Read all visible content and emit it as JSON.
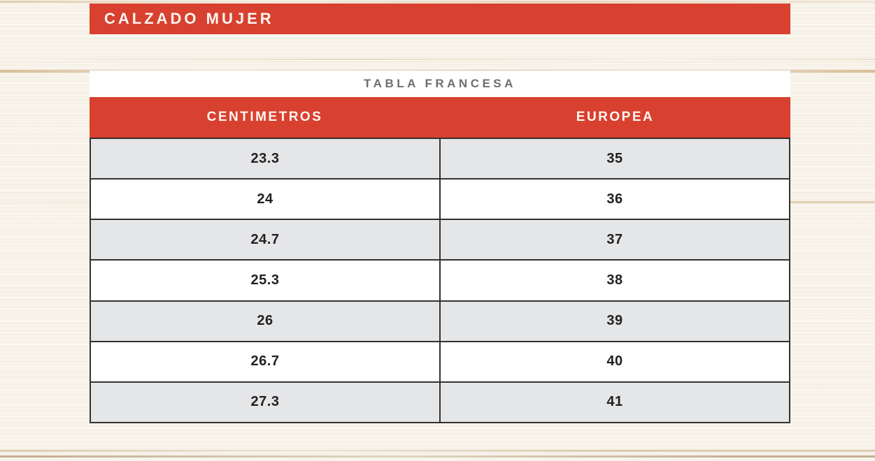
{
  "banner": {
    "title": "CALZADO MUJER"
  },
  "size_table": {
    "title": "TABLA FRANCESA",
    "columns": [
      "CENTIMETROS",
      "EUROPEA"
    ],
    "rows": [
      [
        "23.3",
        "35"
      ],
      [
        "24",
        "36"
      ],
      [
        "24.7",
        "37"
      ],
      [
        "25.3",
        "38"
      ],
      [
        "26",
        "39"
      ],
      [
        "26.7",
        "40"
      ],
      [
        "27.3",
        "41"
      ]
    ]
  },
  "colors": {
    "accent_red": "#D8402F",
    "row_alt_gray": "#E5E6E8",
    "heading_gray": "#6D6E71",
    "cell_text": "#242021",
    "border_dark": "#35322E"
  },
  "chart_data": {
    "type": "table",
    "section": "CALZADO MUJER",
    "title": "TABLA FRANCESA",
    "columns": [
      "CENTIMETROS",
      "EUROPEA"
    ],
    "rows": [
      [
        "23.3",
        "35"
      ],
      [
        "24",
        "36"
      ],
      [
        "24.7",
        "37"
      ],
      [
        "25.3",
        "38"
      ],
      [
        "26",
        "39"
      ],
      [
        "26.7",
        "40"
      ],
      [
        "27.3",
        "41"
      ]
    ]
  }
}
